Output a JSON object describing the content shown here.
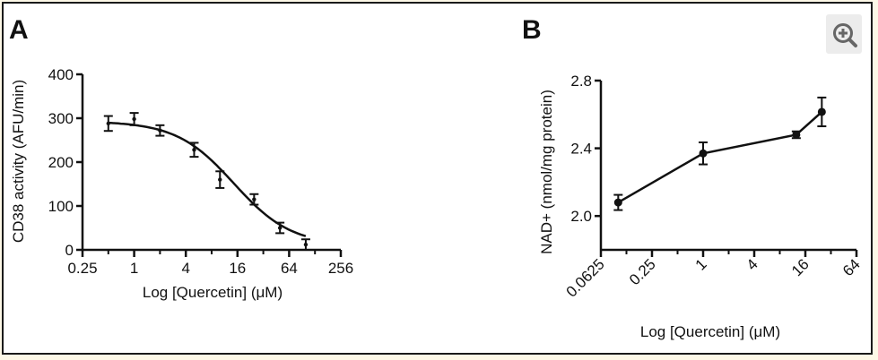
{
  "toolbar": {
    "zoom_icon": "zoom-in-icon"
  },
  "chart_data": [
    {
      "panel": "A",
      "type": "line",
      "x_scale": "log2",
      "xlabel": "Log [Quercetin] (μM)",
      "ylabel": "CD38 activity (AFU/min)",
      "xlim": [
        0.25,
        256
      ],
      "ylim": [
        0,
        400
      ],
      "x_ticks": [
        0.25,
        1,
        4,
        16,
        64,
        256
      ],
      "x_tick_labels": [
        "0.25",
        "1",
        "4",
        "16",
        "64",
        "256"
      ],
      "y_ticks": [
        0,
        100,
        200,
        300,
        400
      ],
      "y_tick_labels": [
        "0",
        "100",
        "200",
        "300",
        "400"
      ],
      "points": [
        {
          "x": 0.5,
          "y": 288,
          "err": 17
        },
        {
          "x": 1,
          "y": 298,
          "err": 14
        },
        {
          "x": 2,
          "y": 272,
          "err": 12
        },
        {
          "x": 5,
          "y": 228,
          "err": 16
        },
        {
          "x": 10,
          "y": 160,
          "err": 19
        },
        {
          "x": 25,
          "y": 115,
          "err": 12
        },
        {
          "x": 50,
          "y": 50,
          "err": 12
        },
        {
          "x": 100,
          "y": 12,
          "err": 12
        }
      ],
      "fit_curve": {
        "type": "four-parameter logistic",
        "top": 293,
        "bottom": 10,
        "ic50": 14.5,
        "hill": 1.3,
        "x_range": [
          0.5,
          100
        ]
      }
    },
    {
      "panel": "B",
      "type": "line",
      "x_scale": "log2",
      "xlabel": "Log [Quercetin] (μM)",
      "ylabel": "NAD+ (nmol/mg protein)",
      "xlim": [
        0.0625,
        64
      ],
      "ylim": [
        1.8,
        2.8
      ],
      "x_ticks": [
        0.0625,
        0.25,
        1,
        4,
        16,
        64
      ],
      "x_tick_labels": [
        "0.0625",
        "0.25",
        "1",
        "4",
        "16",
        "64"
      ],
      "y_ticks": [
        2.0,
        2.4,
        2.8
      ],
      "y_tick_labels": [
        "2.0",
        "2.4",
        "2.8"
      ],
      "points": [
        {
          "x": 0.1,
          "y": 2.08,
          "err": 0.045
        },
        {
          "x": 1,
          "y": 2.37,
          "err": 0.065
        },
        {
          "x": 12.5,
          "y": 2.48,
          "err": 0.02
        },
        {
          "x": 25,
          "y": 2.615,
          "err": 0.085
        }
      ]
    }
  ],
  "panel_labels": [
    "A",
    "B"
  ]
}
